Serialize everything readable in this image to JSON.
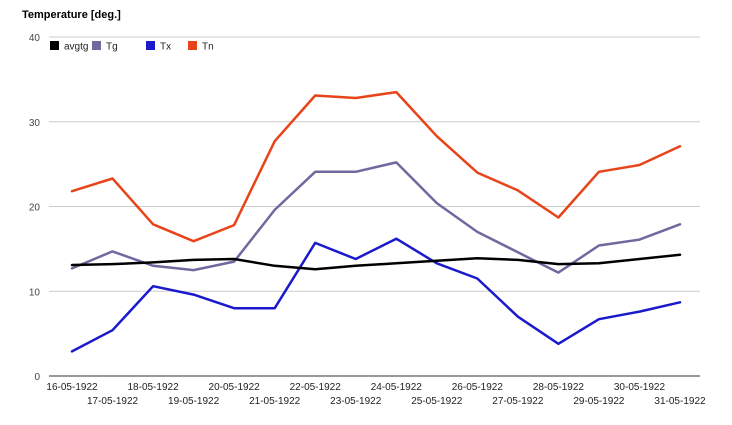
{
  "chart_data": {
    "type": "line",
    "title": "Temperature [deg.]",
    "xlabel": "",
    "ylabel": "",
    "ylim": [
      0,
      40
    ],
    "yticks": [
      0,
      10,
      20,
      30,
      40
    ],
    "grid": true,
    "legend_position": "top-left",
    "categories": [
      "16-05-1922",
      "17-05-1922",
      "18-05-1922",
      "19-05-1922",
      "20-05-1922",
      "21-05-1922",
      "22-05-1922",
      "23-05-1922",
      "24-05-1922",
      "25-05-1922",
      "26-05-1922",
      "27-05-1922",
      "28-05-1922",
      "29-05-1922",
      "30-05-1922",
      "31-05-1922"
    ],
    "series": [
      {
        "name": "avgtg",
        "color": "#000000",
        "values": [
          13.1,
          13.2,
          13.4,
          13.7,
          13.8,
          13.0,
          12.6,
          13.0,
          13.3,
          13.6,
          13.9,
          13.7,
          13.2,
          13.3,
          13.8,
          14.3
        ]
      },
      {
        "name": "Tg",
        "color": "#6e6a9e",
        "values": [
          12.7,
          14.7,
          13.0,
          12.5,
          13.5,
          19.6,
          24.1,
          24.1,
          25.2,
          20.4,
          17.0,
          14.6,
          12.2,
          15.4,
          16.1,
          17.9
        ]
      },
      {
        "name": "Tx",
        "color": "#1a1acc",
        "values": [
          2.9,
          5.4,
          10.6,
          9.6,
          8.0,
          8.0,
          15.7,
          13.8,
          16.2,
          13.3,
          11.5,
          7.0,
          3.8,
          6.7,
          7.6,
          8.7
        ]
      },
      {
        "name": "Tn",
        "color": "#e8441a",
        "values": [
          21.8,
          23.3,
          17.9,
          15.9,
          17.8,
          27.7,
          33.1,
          32.8,
          33.5,
          28.3,
          24.0,
          21.9,
          18.7,
          24.1,
          24.9,
          27.1
        ]
      }
    ]
  }
}
